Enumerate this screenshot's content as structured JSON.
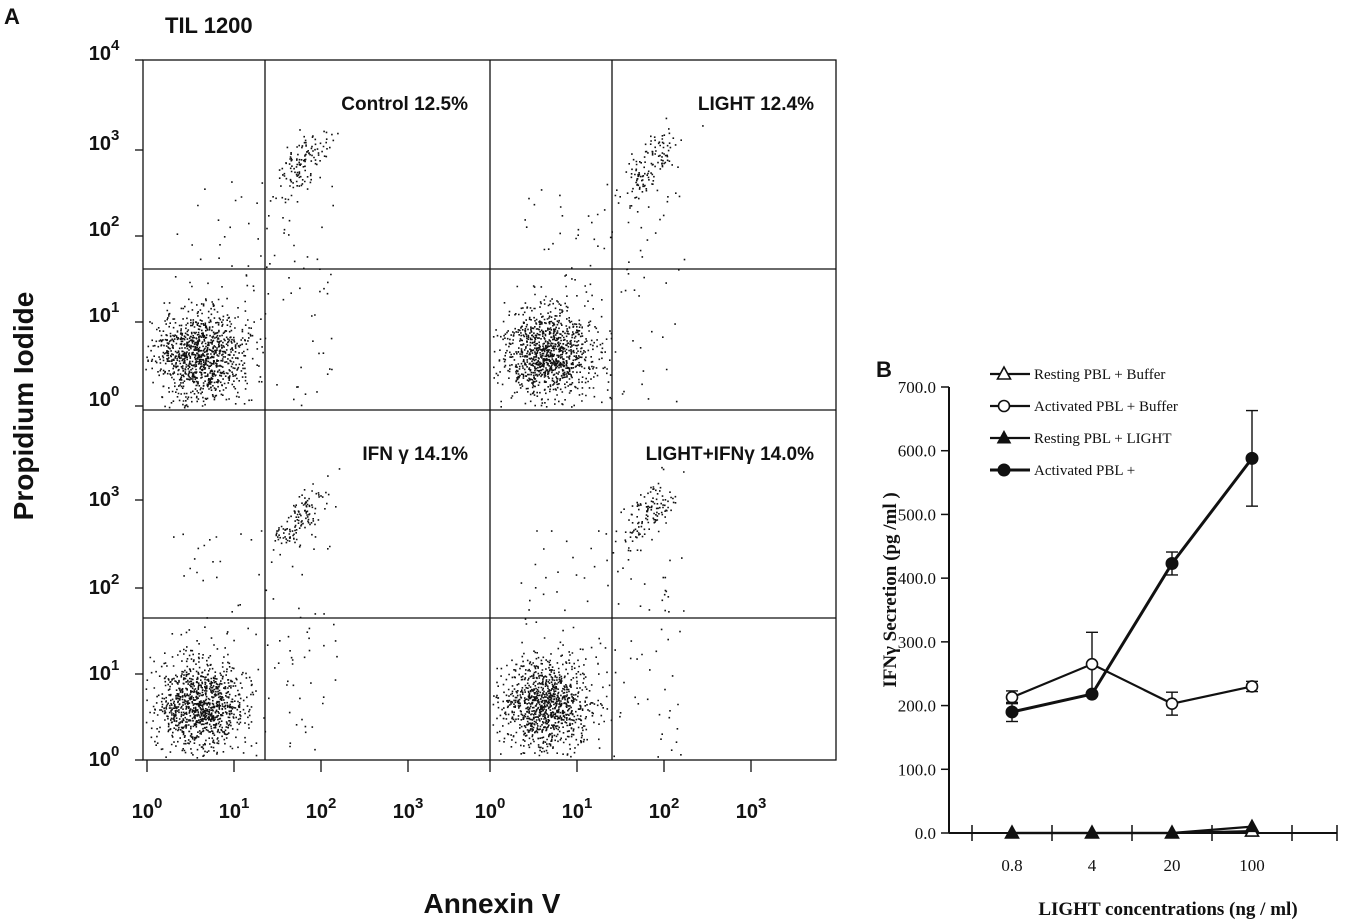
{
  "panel_a": {
    "letter": "A",
    "title": "TIL 1200",
    "ylabel": "Propidium Iodide",
    "xlabel": "Annexin V",
    "tick_base": "10",
    "x_tick_exponents": [
      "0",
      "1",
      "2",
      "3"
    ],
    "y_tick_exponents_top": [
      "4",
      "3",
      "2",
      "1",
      "0"
    ],
    "y_tick_exponents_bottom": [
      "3",
      "2",
      "1",
      "0"
    ]
  },
  "panel_b": {
    "letter": "B"
  },
  "chart_data": [
    {
      "type": "scatter",
      "subtype": "flow-cytometry quadrant plots (2x2)",
      "title": "TIL 1200",
      "xlabel": "Annexin V",
      "ylabel": "Propidium Iodide",
      "xscale": "log",
      "yscale": "log",
      "xlim": [
        1,
        10000
      ],
      "ylim": [
        1,
        10000
      ],
      "panels": [
        {
          "label": "Control 12.5%",
          "position": "top-left",
          "seed": 11
        },
        {
          "label": "LIGHT 12.4%",
          "position": "top-right",
          "seed": 23
        },
        {
          "label": "IFN γ 14.1%",
          "position": "bottom-left",
          "seed": 37
        },
        {
          "label": "LIGHT+IFNγ 14.0%",
          "position": "bottom-right",
          "seed": 53
        }
      ],
      "populations": [
        {
          "name": "annexin-negative, PI-negative",
          "center": [
            4,
            4
          ],
          "spread": 3,
          "share": 0.82
        },
        {
          "name": "annexin-positive, PI-positive",
          "center": [
            60,
            600
          ],
          "spread": 2,
          "share": 0.1
        },
        {
          "name": "scattered",
          "center": [
            10,
            60
          ],
          "spread": 5,
          "share": 0.08
        }
      ]
    },
    {
      "type": "line",
      "xlabel": "LIGHT concentrations (ng / ml)",
      "ylabel": "IFNγ Secretion (pg /ml )",
      "categories": [
        "0.8",
        "4",
        "20",
        "100"
      ],
      "ylim": [
        0,
        700
      ],
      "y_ticks": [
        "0.0",
        "100.0",
        "200.0",
        "300.0",
        "400.0",
        "500.0",
        "600.0",
        "700.0"
      ],
      "series": [
        {
          "name": "Resting PBL + Buffer",
          "marker": "open-triangle",
          "values": [
            0,
            0,
            0,
            3
          ],
          "errors": [
            0,
            0,
            0,
            0
          ]
        },
        {
          "name": "Activated PBL + Buffer",
          "marker": "open-circle",
          "values": [
            213,
            265,
            203,
            230
          ],
          "errors": [
            10,
            50,
            18,
            8
          ]
        },
        {
          "name": "Resting PBL + LIGHT",
          "marker": "filled-triangle",
          "values": [
            0,
            0,
            0,
            10
          ],
          "errors": [
            0,
            0,
            0,
            0
          ]
        },
        {
          "name": "Activated PBL +",
          "marker": "filled-circle",
          "values": [
            190,
            218,
            423,
            588
          ],
          "errors": [
            15,
            0,
            18,
            75
          ]
        }
      ]
    }
  ]
}
